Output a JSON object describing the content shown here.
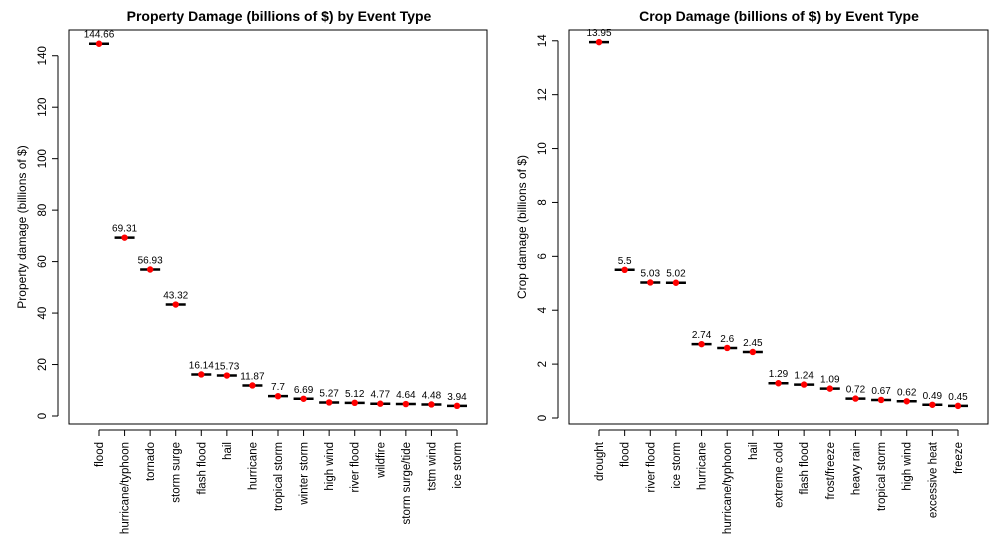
{
  "chart_data": [
    {
      "type": "scatter",
      "title": "Property Damage (billions of $) by Event Type",
      "xlabel": "",
      "ylabel": "Property damage (billions of $)",
      "ylim": [
        0,
        150
      ],
      "yticks": [
        0,
        20,
        40,
        60,
        80,
        100,
        120,
        140
      ],
      "grid": false,
      "categories": [
        "flood",
        "hurricane/typhoon",
        "tornado",
        "storm surge",
        "flash flood",
        "hail",
        "hurricane",
        "tropical storm",
        "winter storm",
        "high wind",
        "river flood",
        "wildfire",
        "storm surge/tide",
        "tstm wind",
        "ice storm"
      ],
      "values": [
        144.66,
        69.31,
        56.93,
        43.32,
        16.14,
        15.73,
        11.87,
        7.7,
        6.69,
        5.27,
        5.12,
        4.77,
        4.64,
        4.48,
        3.94
      ],
      "value_labels": [
        "144.66",
        "69.31",
        "56.93",
        "43.32",
        "16.14",
        "15.73",
        "11.87",
        "7.7",
        "6.69",
        "5.27",
        "5.12",
        "4.77",
        "4.64",
        "4.48",
        "3.94"
      ],
      "point_color": "#ff0000",
      "bar_color": "#000000"
    },
    {
      "type": "scatter",
      "title": "Crop Damage (billions of $) by Event Type",
      "xlabel": "",
      "ylabel": "Crop damage (billions of $)",
      "ylim": [
        0,
        14.4
      ],
      "yticks": [
        0,
        2,
        4,
        6,
        8,
        10,
        12,
        14
      ],
      "grid": false,
      "categories": [
        "drought",
        "flood",
        "river flood",
        "ice storm",
        "hurricane",
        "hurricane/typhoon",
        "hail",
        "extreme cold",
        "flash flood",
        "frost/freeze",
        "heavy rain",
        "tropical storm",
        "high wind",
        "excessive heat",
        "freeze"
      ],
      "values": [
        13.95,
        5.5,
        5.03,
        5.02,
        2.74,
        2.6,
        2.45,
        1.29,
        1.24,
        1.09,
        0.72,
        0.67,
        0.62,
        0.49,
        0.45
      ],
      "value_labels": [
        "13.95",
        "5.5",
        "5.03",
        "5.02",
        "2.74",
        "2.6",
        "2.45",
        "1.29",
        "1.24",
        "1.09",
        "0.72",
        "0.67",
        "0.62",
        "0.49",
        "0.45"
      ],
      "point_color": "#ff0000",
      "bar_color": "#000000"
    }
  ]
}
